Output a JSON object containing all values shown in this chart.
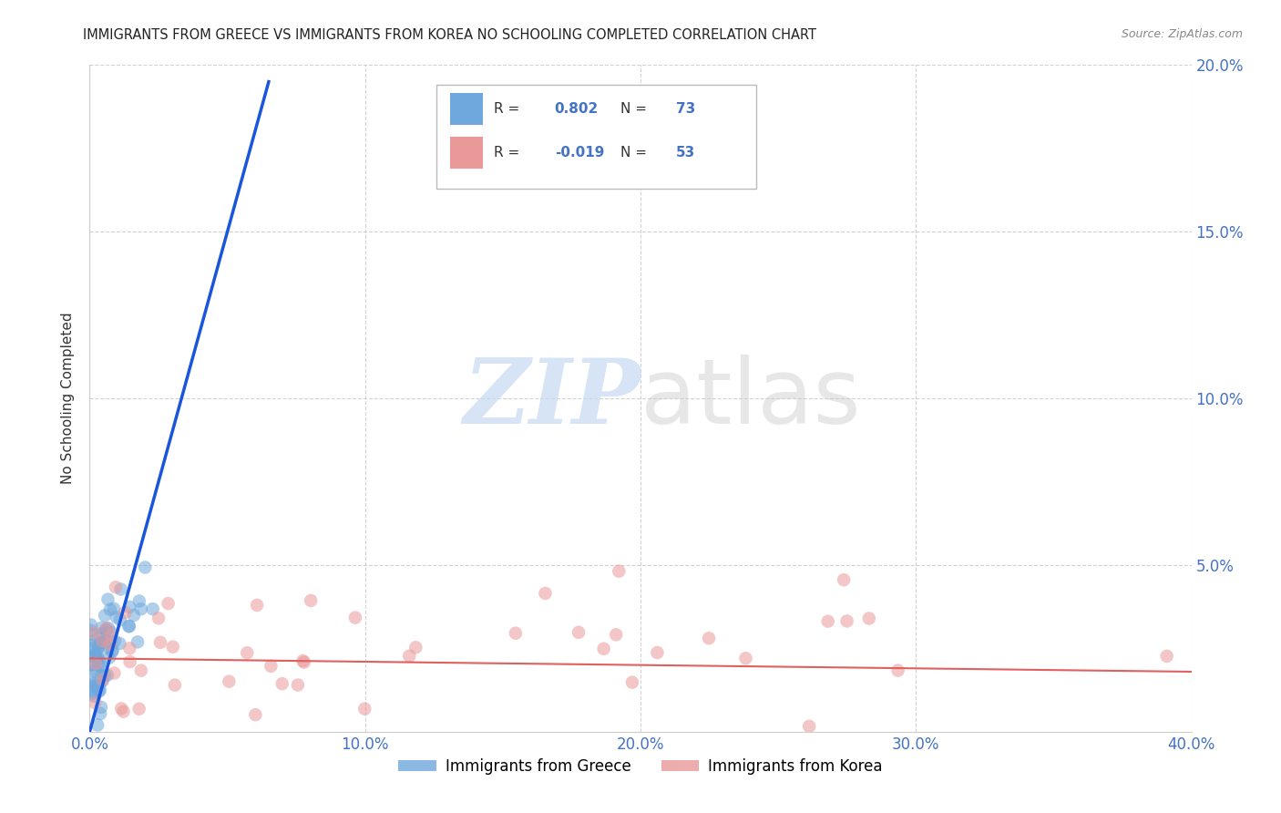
{
  "title": "IMMIGRANTS FROM GREECE VS IMMIGRANTS FROM KOREA NO SCHOOLING COMPLETED CORRELATION CHART",
  "source": "Source: ZipAtlas.com",
  "ylabel": "No Schooling Completed",
  "xlim": [
    0.0,
    0.4
  ],
  "ylim": [
    0.0,
    0.2
  ],
  "xtick_labels": [
    "0.0%",
    "10.0%",
    "20.0%",
    "30.0%",
    "40.0%"
  ],
  "xtick_values": [
    0.0,
    0.1,
    0.2,
    0.3,
    0.4
  ],
  "ytick_values": [
    0.05,
    0.1,
    0.15,
    0.2
  ],
  "ytick_labels": [
    "5.0%",
    "10.0%",
    "15.0%",
    "20.0%"
  ],
  "greece_color": "#6fa8dc",
  "korea_color": "#ea9999",
  "greece_line_color": "#1a56db",
  "korea_line_color": "#e06060",
  "greece_R": 0.802,
  "greece_N": 73,
  "korea_R": -0.019,
  "korea_N": 53,
  "legend_label_greece": "Immigrants from Greece",
  "legend_label_korea": "Immigrants from Korea",
  "watermark_zip": "ZIP",
  "watermark_atlas": "atlas",
  "background_color": "#ffffff",
  "grid_color": "#cccccc",
  "title_color": "#222222",
  "blue_tick_color": "#4472c4",
  "greece_line_x0": 0.0,
  "greece_line_y0": 0.0,
  "greece_line_x1": 0.065,
  "greece_line_y1": 0.195,
  "korea_line_x0": 0.0,
  "korea_line_y0": 0.022,
  "korea_line_x1": 0.4,
  "korea_line_y1": 0.018
}
